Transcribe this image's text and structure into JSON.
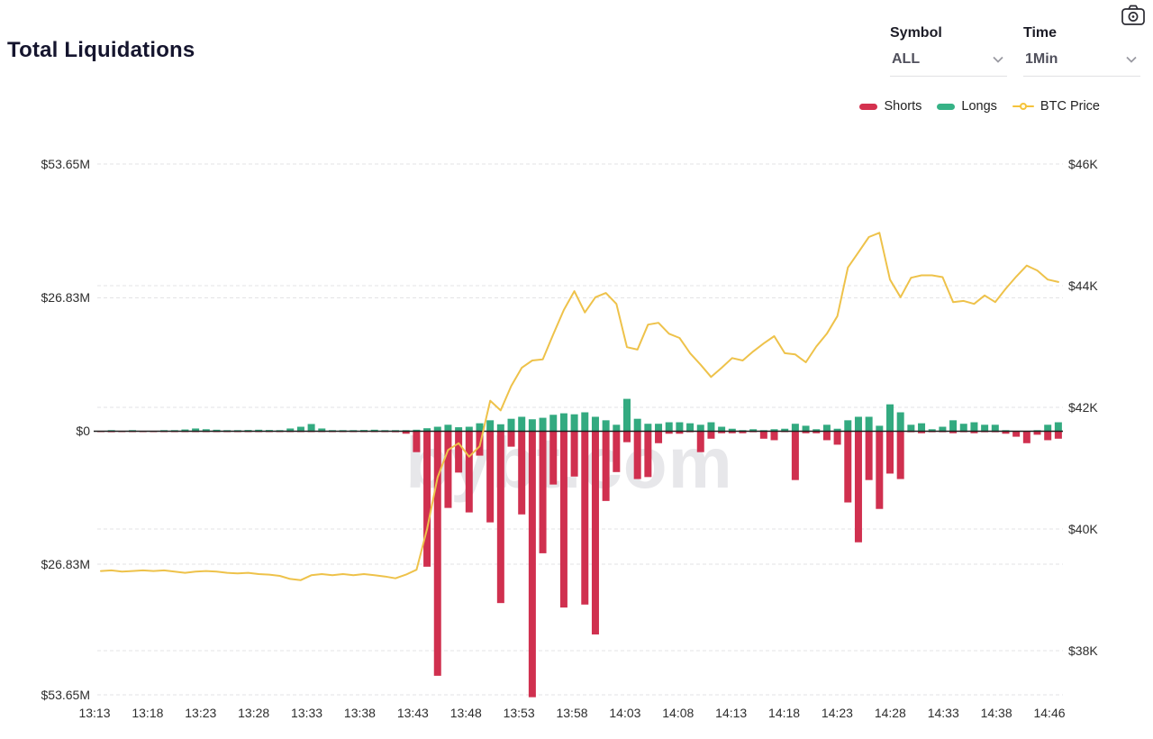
{
  "header": {
    "title": "Total Liquidations"
  },
  "controls": {
    "symbol_label": "Symbol",
    "symbol_value": "ALL",
    "time_label": "Time",
    "time_value": "1Min"
  },
  "legend": {
    "shorts_label": "Shorts",
    "longs_label": "Longs",
    "btc_label": "BTC Price"
  },
  "watermark": "bybt.com",
  "colors": {
    "shorts": "#d0304f",
    "longs": "#33aa80",
    "btc_line": "#eec24a",
    "legend_shorts": "#d4314e",
    "legend_longs": "#36b286",
    "legend_btc": "#f5c33b",
    "grid": "#e3e3e5",
    "zero_line": "#1f1f1f",
    "axis_text": "#2d2d2d"
  },
  "chart_data": {
    "type": "bar",
    "title": "Total Liquidations",
    "x_interval": "1min",
    "x_range": [
      "13:12",
      "14:43"
    ],
    "x_ticks": [
      "13:13",
      "13:18",
      "13:23",
      "13:28",
      "13:33",
      "13:38",
      "13:43",
      "13:48",
      "13:53",
      "13:58",
      "14:03",
      "14:08",
      "14:13",
      "14:18",
      "14:23",
      "14:28",
      "14:33",
      "14:38",
      "14:46"
    ],
    "left_axis": {
      "ticks": [
        "$53.65M",
        "$26.83M",
        "$0",
        "$26.83M",
        "$53.65M"
      ],
      "max_musd": 53.65,
      "mirrored": true
    },
    "right_axis": {
      "ticks": [
        "$46K",
        "$44K",
        "$42K",
        "$40K",
        "$38K"
      ],
      "top_kusd": 46,
      "bottom_kusd": 38
    },
    "grid": true,
    "legend_position": "top-right",
    "series": [
      {
        "name": "Shorts",
        "type": "bar",
        "direction": "down",
        "unit": "$M",
        "values": [
          0.15,
          0.2,
          0.15,
          0.1,
          0.15,
          0.1,
          0.1,
          0.1,
          0.05,
          0.1,
          0.05,
          0.1,
          0.05,
          0.05,
          0.05,
          0.05,
          0.05,
          0.05,
          0.1,
          0.1,
          0.05,
          0.1,
          0.05,
          0.05,
          0.05,
          0.05,
          0.1,
          0.15,
          0.2,
          0.5,
          4.2,
          27.2,
          49.1,
          15.4,
          8.3,
          16.3,
          4.9,
          18.3,
          34.5,
          3.1,
          16.7,
          53.4,
          24.5,
          10.7,
          35.4,
          9.1,
          34.8,
          40.8,
          14.0,
          8.2,
          2.2,
          9.6,
          9.2,
          2.4,
          0.5,
          0.5,
          0.2,
          4.2,
          1.5,
          0.4,
          0.4,
          0.4,
          0.2,
          1.5,
          1.8,
          0.1,
          9.8,
          0.4,
          0.4,
          1.8,
          2.7,
          14.3,
          22.3,
          9.8,
          15.6,
          8.5,
          9.6,
          0.2,
          0.4,
          0.2,
          0.2,
          0.4,
          0.2,
          0.4,
          0.2,
          0.2,
          0.5,
          1.1,
          2.4,
          0.7,
          1.8,
          1.5
        ]
      },
      {
        "name": "Longs",
        "type": "bar",
        "direction": "up",
        "unit": "$M",
        "values": [
          0,
          0.05,
          0,
          0.05,
          0,
          0,
          0.05,
          0.1,
          0.35,
          0.55,
          0.4,
          0.3,
          0.1,
          0.1,
          0.25,
          0.3,
          0.25,
          0.1,
          0.55,
          0.9,
          1.45,
          0.55,
          0.15,
          0.1,
          0.2,
          0.25,
          0.3,
          0.2,
          0.1,
          0.1,
          0.3,
          0.6,
          0.9,
          1.3,
          0.8,
          0.9,
          1.6,
          2.2,
          1.4,
          2.5,
          2.9,
          2.4,
          2.7,
          3.3,
          3.6,
          3.4,
          3.8,
          2.9,
          2.2,
          1.3,
          6.5,
          2.5,
          1.5,
          1.5,
          1.8,
          1.8,
          1.6,
          1.3,
          1.8,
          0.9,
          0.5,
          0.1,
          0.4,
          0.1,
          0.4,
          0.5,
          1.5,
          1.1,
          0.4,
          1.3,
          0.5,
          2.2,
          2.9,
          2.9,
          1.1,
          5.4,
          3.8,
          1.3,
          1.6,
          0.4,
          0.9,
          2.2,
          1.5,
          1.8,
          1.3,
          1.3,
          0.1,
          0,
          0,
          0.1,
          1.3,
          1.8
        ]
      },
      {
        "name": "BTC Price",
        "type": "line",
        "axis": "right",
        "unit": "$K",
        "values": [
          39.31,
          39.32,
          39.3,
          39.31,
          39.32,
          39.31,
          39.32,
          39.3,
          39.28,
          39.3,
          39.31,
          39.3,
          39.28,
          39.27,
          39.28,
          39.26,
          39.25,
          39.23,
          39.18,
          39.16,
          39.24,
          39.26,
          39.24,
          39.26,
          39.24,
          39.26,
          39.24,
          39.22,
          39.19,
          39.25,
          39.33,
          40.0,
          40.85,
          41.3,
          41.41,
          41.19,
          41.36,
          42.11,
          41.95,
          42.35,
          42.65,
          42.77,
          42.79,
          43.2,
          43.6,
          43.91,
          43.56,
          43.81,
          43.88,
          43.7,
          42.99,
          42.95,
          43.36,
          43.39,
          43.21,
          43.14,
          42.89,
          42.7,
          42.5,
          42.65,
          42.81,
          42.77,
          42.92,
          43.05,
          43.17,
          42.89,
          42.87,
          42.74,
          43.0,
          43.21,
          43.5,
          44.3,
          44.55,
          44.8,
          44.87,
          44.1,
          43.81,
          44.13,
          44.17,
          44.17,
          44.14,
          43.73,
          43.75,
          43.7,
          43.84,
          43.73,
          43.95,
          44.15,
          44.33,
          44.25,
          44.1,
          44.06
        ]
      }
    ]
  }
}
